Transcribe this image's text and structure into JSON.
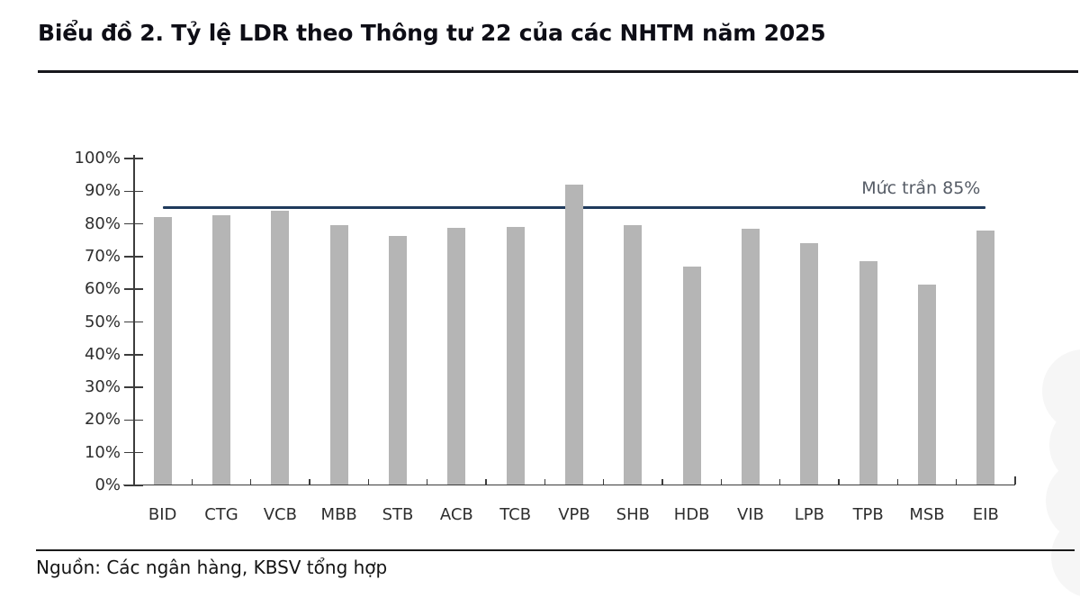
{
  "header": {
    "title": "Biểu đồ 2. Tỷ lệ LDR theo Thông tư 22 của các NHTM năm 2025"
  },
  "chart_data": {
    "type": "bar",
    "title": "Biểu đồ 2. Tỷ lệ LDR theo Thông tư 22 của các NHTM năm 2025",
    "categories": [
      "BID",
      "CTG",
      "VCB",
      "MBB",
      "STB",
      "ACB",
      "TCB",
      "VPB",
      "SHB",
      "HDB",
      "VIB",
      "LPB",
      "TPB",
      "MSB",
      "EIB"
    ],
    "values": [
      82,
      82.6,
      84,
      79.7,
      76.3,
      78.9,
      79,
      92,
      79.7,
      67,
      78.6,
      74,
      68.6,
      61.5,
      77.9
    ],
    "xlabel": "",
    "ylabel": "",
    "ylim": [
      0,
      100
    ],
    "yticks": [
      {
        "v": 0,
        "label": "0%"
      },
      {
        "v": 10,
        "label": "10%"
      },
      {
        "v": 20,
        "label": "20%"
      },
      {
        "v": 30,
        "label": "30%"
      },
      {
        "v": 40,
        "label": "40%"
      },
      {
        "v": 50,
        "label": "50%"
      },
      {
        "v": 60,
        "label": "60%"
      },
      {
        "v": 70,
        "label": "70%"
      },
      {
        "v": 80,
        "label": "80%"
      },
      {
        "v": 90,
        "label": "90%"
      },
      {
        "v": 100,
        "label": "100%"
      }
    ],
    "grid": false,
    "legend": "none",
    "reference_line": {
      "value": 85,
      "label": "Mức trần 85%"
    },
    "colors": {
      "bar": "#b5b5b5",
      "reference_line": "#1f3a5c",
      "reference_label": "#565c66",
      "axis": "#3c3c3c"
    }
  },
  "footer": {
    "source": "Nguồn: Các ngân hàng, KBSV tổng hợp"
  }
}
